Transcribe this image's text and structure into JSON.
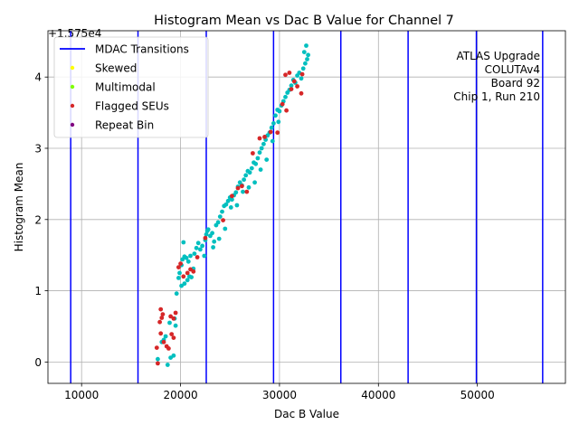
{
  "chart_data": {
    "type": "scatter",
    "title": "Histogram Mean vs Dac B Value for Channel 7",
    "xlabel": "Dac B Value",
    "ylabel": "Histogram Mean",
    "offset_label": "+1.575e4",
    "xlim": [
      6600,
      58900
    ],
    "ylim": [
      -0.3,
      4.65
    ],
    "xticks": [
      10000,
      20000,
      30000,
      40000,
      50000
    ],
    "xtick_labels": [
      "10000",
      "20000",
      "30000",
      "40000",
      "50000"
    ],
    "yticks": [
      0,
      1,
      2,
      3,
      4
    ],
    "ytick_labels": [
      "0",
      "1",
      "2",
      "3",
      "4"
    ],
    "grid": true,
    "legend_position": "upper-left",
    "annotation": [
      "ATLAS Upgrade",
      "COLUTAv4",
      "Board 92",
      "Chip 1, Run 210"
    ],
    "colors": {
      "transitions": "#0000ff",
      "normal": "#00bfbf",
      "skewed": "#ffff00",
      "multimodal": "#7fff00",
      "flagged": "#d62728",
      "repeat": "#800080",
      "grid": "#b0b0b0"
    },
    "legend": [
      {
        "key": "transitions",
        "label": "MDAC Transitions",
        "kind": "line"
      },
      {
        "key": "skewed",
        "label": "Skewed",
        "kind": "point"
      },
      {
        "key": "multimodal",
        "label": "Multimodal",
        "kind": "point"
      },
      {
        "key": "flagged",
        "label": "Flagged SEUs",
        "kind": "point"
      },
      {
        "key": "repeat",
        "label": "Repeat Bin",
        "kind": "point"
      }
    ],
    "mdac_transitions": [
      8900,
      15700,
      22600,
      29400,
      36200,
      43000,
      49900,
      56600
    ],
    "series": [
      {
        "key": "normal",
        "points": [
          [
            17700,
            0.04
          ],
          [
            18100,
            0.28
          ],
          [
            18500,
            0.36
          ],
          [
            18700,
            -0.04
          ],
          [
            19000,
            0.06
          ],
          [
            19300,
            0.09
          ],
          [
            18300,
            0.31
          ],
          [
            18900,
            0.55
          ],
          [
            19400,
            0.61
          ],
          [
            19500,
            0.51
          ],
          [
            19600,
            0.96
          ],
          [
            19800,
            1.18
          ],
          [
            19900,
            1.25
          ],
          [
            20100,
            1.36
          ],
          [
            20200,
            1.44
          ],
          [
            20400,
            1.48
          ],
          [
            20600,
            1.46
          ],
          [
            20100,
            1.07
          ],
          [
            20400,
            1.1
          ],
          [
            20700,
            1.15
          ],
          [
            20900,
            1.2
          ],
          [
            21100,
            1.19
          ],
          [
            21300,
            1.31
          ],
          [
            20300,
            1.68
          ],
          [
            20800,
            1.41
          ],
          [
            21000,
            1.49
          ],
          [
            21400,
            1.52
          ],
          [
            21600,
            1.6
          ],
          [
            21800,
            1.67
          ],
          [
            22000,
            1.58
          ],
          [
            22200,
            1.63
          ],
          [
            22400,
            1.49
          ],
          [
            22500,
            1.71
          ],
          [
            22600,
            1.79
          ],
          [
            22700,
            1.84
          ],
          [
            22800,
            1.86
          ],
          [
            23000,
            1.77
          ],
          [
            23200,
            1.81
          ],
          [
            23400,
            1.69
          ],
          [
            23600,
            1.92
          ],
          [
            23800,
            1.96
          ],
          [
            24000,
            2.04
          ],
          [
            24200,
            2.11
          ],
          [
            24400,
            2.19
          ],
          [
            24600,
            2.21
          ],
          [
            24800,
            2.26
          ],
          [
            25000,
            2.31
          ],
          [
            25200,
            2.28
          ],
          [
            25400,
            2.34
          ],
          [
            25600,
            2.38
          ],
          [
            25800,
            2.46
          ],
          [
            26000,
            2.52
          ],
          [
            26200,
            2.48
          ],
          [
            26400,
            2.56
          ],
          [
            26600,
            2.62
          ],
          [
            26800,
            2.68
          ],
          [
            27000,
            2.66
          ],
          [
            27200,
            2.72
          ],
          [
            27400,
            2.8
          ],
          [
            27600,
            2.78
          ],
          [
            27800,
            2.86
          ],
          [
            28000,
            2.94
          ],
          [
            28200,
            3.0
          ],
          [
            28400,
            3.06
          ],
          [
            28600,
            3.12
          ],
          [
            28800,
            3.18
          ],
          [
            29000,
            3.22
          ],
          [
            29200,
            3.29
          ],
          [
            29400,
            3.35
          ],
          [
            29600,
            3.46
          ],
          [
            29800,
            3.54
          ],
          [
            30000,
            3.52
          ],
          [
            30200,
            3.6
          ],
          [
            30400,
            3.66
          ],
          [
            30600,
            3.72
          ],
          [
            30800,
            3.78
          ],
          [
            31000,
            3.82
          ],
          [
            31200,
            3.88
          ],
          [
            31400,
            3.96
          ],
          [
            31600,
            3.92
          ],
          [
            31800,
            4.02
          ],
          [
            32000,
            4.06
          ],
          [
            32200,
            3.98
          ],
          [
            32400,
            4.12
          ],
          [
            32600,
            4.19
          ],
          [
            32800,
            4.25
          ],
          [
            32500,
            4.35
          ],
          [
            32700,
            4.44
          ],
          [
            32900,
            4.31
          ],
          [
            23300,
            1.61
          ],
          [
            23900,
            1.73
          ],
          [
            24500,
            1.87
          ],
          [
            25100,
            2.17
          ],
          [
            25700,
            2.2
          ],
          [
            26300,
            2.39
          ],
          [
            26900,
            2.45
          ],
          [
            27500,
            2.52
          ],
          [
            28100,
            2.7
          ],
          [
            28700,
            2.84
          ],
          [
            29300,
            3.1
          ],
          [
            29900,
            3.37
          ]
        ]
      },
      {
        "key": "flagged",
        "points": [
          [
            17600,
            0.2
          ],
          [
            17700,
            -0.02
          ],
          [
            17900,
            0.56
          ],
          [
            18000,
            0.74
          ],
          [
            18100,
            0.62
          ],
          [
            18200,
            0.67
          ],
          [
            18000,
            0.4
          ],
          [
            18300,
            0.28
          ],
          [
            18600,
            0.22
          ],
          [
            18800,
            0.19
          ],
          [
            19100,
            0.39
          ],
          [
            19300,
            0.34
          ],
          [
            19000,
            0.64
          ],
          [
            19300,
            0.61
          ],
          [
            19500,
            0.69
          ],
          [
            19800,
            1.33
          ],
          [
            20000,
            1.38
          ],
          [
            20300,
            1.2
          ],
          [
            20700,
            1.25
          ],
          [
            21000,
            1.3
          ],
          [
            21300,
            1.27
          ],
          [
            21700,
            1.47
          ],
          [
            22500,
            1.74
          ],
          [
            24300,
            1.99
          ],
          [
            25200,
            2.33
          ],
          [
            25800,
            2.44
          ],
          [
            26200,
            2.47
          ],
          [
            26700,
            2.39
          ],
          [
            27300,
            2.93
          ],
          [
            28000,
            3.14
          ],
          [
            28500,
            3.16
          ],
          [
            29100,
            3.23
          ],
          [
            29800,
            3.22
          ],
          [
            30300,
            3.62
          ],
          [
            30600,
            4.03
          ],
          [
            31000,
            4.06
          ],
          [
            31200,
            3.83
          ],
          [
            31500,
            3.94
          ],
          [
            31800,
            3.87
          ],
          [
            32200,
            3.77
          ],
          [
            30700,
            3.53
          ],
          [
            32300,
            4.04
          ]
        ]
      },
      {
        "key": "skewed",
        "points": []
      },
      {
        "key": "multimodal",
        "points": []
      },
      {
        "key": "repeat",
        "points": []
      }
    ]
  }
}
